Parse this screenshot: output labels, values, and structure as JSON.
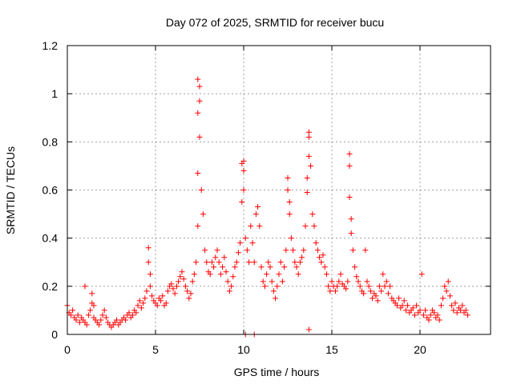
{
  "chart_data": {
    "type": "scatter",
    "title": "Day 072 of 2025, SRMTID for receiver bucu",
    "xlabel": "GPS time / hours",
    "ylabel": "SRMTID / TECUs",
    "xlim": [
      0,
      24
    ],
    "ylim": [
      0,
      1.2
    ],
    "grid": true,
    "marker": "+",
    "marker_color": "#ff0000",
    "x_ticks": [
      0,
      5,
      10,
      15,
      20
    ],
    "x_tick_labels": [
      "0",
      "5",
      "10",
      "15",
      "20"
    ],
    "y_ticks": [
      0,
      0.2,
      0.4,
      0.6,
      0.8,
      1.0,
      1.2
    ],
    "y_tick_labels": [
      "0",
      "0.2",
      "0.4",
      "0.6",
      "0.8",
      "1",
      "1.2"
    ],
    "series": [
      {
        "name": "SRMTID",
        "x": [
          0.0,
          0.1,
          0.2,
          0.3,
          0.4,
          0.5,
          0.6,
          0.7,
          0.8,
          0.9,
          1.0,
          1.0,
          1.1,
          1.2,
          1.3,
          1.4,
          1.4,
          1.5,
          1.5,
          1.6,
          1.7,
          1.8,
          1.9,
          2.0,
          2.1,
          2.2,
          2.3,
          2.4,
          2.5,
          2.6,
          2.7,
          2.8,
          2.9,
          3.0,
          3.1,
          3.2,
          3.3,
          3.4,
          3.5,
          3.6,
          3.7,
          3.8,
          3.9,
          4.0,
          4.1,
          4.2,
          4.3,
          4.4,
          4.5,
          4.6,
          4.6,
          4.7,
          4.7,
          4.8,
          4.9,
          5.0,
          5.1,
          5.2,
          5.3,
          5.4,
          5.5,
          5.6,
          5.7,
          5.8,
          5.9,
          6.0,
          6.1,
          6.2,
          6.3,
          6.4,
          6.5,
          6.6,
          6.7,
          6.8,
          6.9,
          7.0,
          7.1,
          7.2,
          7.3,
          7.4,
          7.4,
          7.4,
          7.4,
          7.5,
          7.5,
          7.5,
          7.6,
          7.7,
          7.8,
          7.9,
          8.0,
          8.1,
          8.2,
          8.3,
          8.4,
          8.5,
          8.6,
          8.7,
          8.8,
          8.9,
          9.0,
          9.1,
          9.2,
          9.3,
          9.4,
          9.5,
          9.6,
          9.7,
          9.8,
          9.9,
          9.9,
          10.0,
          10.0,
          10.0,
          10.1,
          10.1,
          10.2,
          10.3,
          10.4,
          10.5,
          10.6,
          10.6,
          10.7,
          10.8,
          10.9,
          11.0,
          11.1,
          11.2,
          11.3,
          11.4,
          11.5,
          11.6,
          11.7,
          11.8,
          11.9,
          12.0,
          12.1,
          12.2,
          12.3,
          12.4,
          12.5,
          12.5,
          12.6,
          12.6,
          12.7,
          12.8,
          12.9,
          13.0,
          13.1,
          13.2,
          13.3,
          13.4,
          13.5,
          13.6,
          13.6,
          13.7,
          13.7,
          13.7,
          13.7,
          13.8,
          13.9,
          14.0,
          14.1,
          14.2,
          14.3,
          14.4,
          14.5,
          14.6,
          14.7,
          14.8,
          14.9,
          15.0,
          15.1,
          15.2,
          15.3,
          15.4,
          15.5,
          15.6,
          15.7,
          15.8,
          15.9,
          16.0,
          16.0,
          16.0,
          16.1,
          16.1,
          16.2,
          16.3,
          16.4,
          16.5,
          16.6,
          16.7,
          16.8,
          16.9,
          17.0,
          17.1,
          17.2,
          17.3,
          17.4,
          17.5,
          17.6,
          17.7,
          17.8,
          17.9,
          18.0,
          18.1,
          18.2,
          18.3,
          18.4,
          18.5,
          18.6,
          18.7,
          18.8,
          18.9,
          19.0,
          19.1,
          19.2,
          19.3,
          19.4,
          19.5,
          19.6,
          19.7,
          19.8,
          19.9,
          20.0,
          20.1,
          20.2,
          20.3,
          20.4,
          20.5,
          20.6,
          20.7,
          20.8,
          20.9,
          21.0,
          21.1,
          21.2,
          21.3,
          21.4,
          21.5,
          21.6,
          21.7,
          21.8,
          21.9,
          22.0,
          22.1,
          22.2,
          22.3,
          22.4,
          22.5,
          22.6,
          22.7
        ],
        "y": [
          0.12,
          0.09,
          0.08,
          0.1,
          0.07,
          0.06,
          0.08,
          0.05,
          0.07,
          0.06,
          0.2,
          0.05,
          0.04,
          0.08,
          0.1,
          0.17,
          0.13,
          0.12,
          0.07,
          0.06,
          0.05,
          0.04,
          0.06,
          0.08,
          0.1,
          0.07,
          0.05,
          0.04,
          0.03,
          0.04,
          0.05,
          0.06,
          0.04,
          0.05,
          0.06,
          0.07,
          0.06,
          0.08,
          0.09,
          0.07,
          0.08,
          0.1,
          0.09,
          0.12,
          0.14,
          0.11,
          0.13,
          0.15,
          0.18,
          0.36,
          0.3,
          0.25,
          0.2,
          0.16,
          0.14,
          0.13,
          0.12,
          0.15,
          0.14,
          0.16,
          0.12,
          0.13,
          0.18,
          0.2,
          0.21,
          0.19,
          0.17,
          0.2,
          0.22,
          0.24,
          0.26,
          0.23,
          0.2,
          0.18,
          0.15,
          0.17,
          0.22,
          0.25,
          0.3,
          0.45,
          0.67,
          1.06,
          0.92,
          0.82,
          0.97,
          1.03,
          0.6,
          0.5,
          0.35,
          0.3,
          0.26,
          0.25,
          0.3,
          0.28,
          0.32,
          0.35,
          0.3,
          0.25,
          0.28,
          0.32,
          0.26,
          0.22,
          0.18,
          0.2,
          0.24,
          0.28,
          0.3,
          0.34,
          0.38,
          0.71,
          0.55,
          0.68,
          0.6,
          0.72,
          0.0,
          0.4,
          0.35,
          0.3,
          0.45,
          0.38,
          0.0,
          0.3,
          0.5,
          0.53,
          0.45,
          0.28,
          0.22,
          0.2,
          0.25,
          0.3,
          0.28,
          0.22,
          0.18,
          0.15,
          0.2,
          0.25,
          0.3,
          0.22,
          0.28,
          0.35,
          0.65,
          0.6,
          0.5,
          0.55,
          0.4,
          0.35,
          0.3,
          0.28,
          0.25,
          0.3,
          0.32,
          0.35,
          0.45,
          0.65,
          0.59,
          0.84,
          0.82,
          0.74,
          0.02,
          0.7,
          0.5,
          0.45,
          0.38,
          0.35,
          0.32,
          0.3,
          0.33,
          0.28,
          0.25,
          0.2,
          0.18,
          0.22,
          0.2,
          0.18,
          0.2,
          0.22,
          0.25,
          0.21,
          0.2,
          0.19,
          0.22,
          0.75,
          0.7,
          0.57,
          0.48,
          0.42,
          0.35,
          0.28,
          0.24,
          0.22,
          0.2,
          0.18,
          0.17,
          0.35,
          0.22,
          0.2,
          0.18,
          0.15,
          0.17,
          0.16,
          0.14,
          0.2,
          0.18,
          0.25,
          0.2,
          0.22,
          0.17,
          0.2,
          0.15,
          0.14,
          0.13,
          0.12,
          0.15,
          0.11,
          0.12,
          0.14,
          0.1,
          0.12,
          0.09,
          0.1,
          0.11,
          0.08,
          0.12,
          0.09,
          0.1,
          0.25,
          0.08,
          0.1,
          0.07,
          0.06,
          0.08,
          0.1,
          0.09,
          0.07,
          0.08,
          0.06,
          0.12,
          0.15,
          0.2,
          0.18,
          0.22,
          0.16,
          0.12,
          0.1,
          0.13,
          0.09,
          0.11,
          0.1,
          0.12,
          0.09,
          0.1,
          0.08
        ]
      }
    ]
  }
}
